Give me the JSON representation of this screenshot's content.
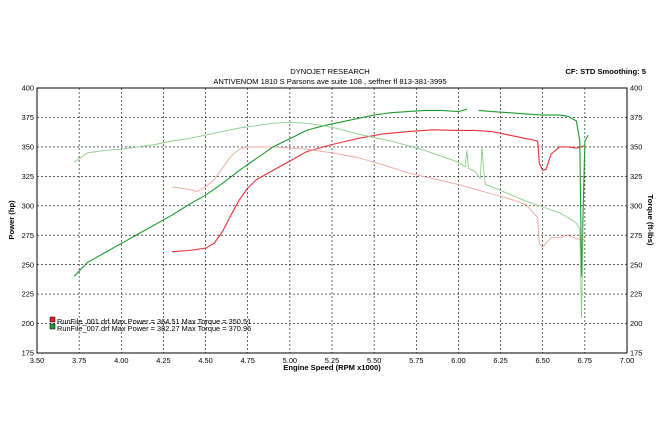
{
  "chart_data": {
    "type": "line",
    "title": "DYNOJET RESEARCH",
    "subtitle": "ANTIVENOM 1810 S Parsons ave suite 108 , seffner fl 813-381-3995",
    "corner_label": "CF: STD  Smoothing: 5",
    "xlabel": "Engine Speed (RPM x1000)",
    "ylabel_left": "Power (hp)",
    "ylabel_right": "Torque (ft-lbs)",
    "xlim": [
      3.5,
      7.0
    ],
    "ylim": [
      175,
      400
    ],
    "x_ticks": [
      "3.50",
      "3.75",
      "4.00",
      "4.25",
      "4.50",
      "4.75",
      "5.00",
      "5.25",
      "5.50",
      "5.75",
      "6.00",
      "6.25",
      "6.50",
      "6.75",
      "7.00"
    ],
    "y_ticks": [
      "175",
      "200",
      "225",
      "250",
      "275",
      "300",
      "325",
      "350",
      "375",
      "400"
    ],
    "grid": true,
    "legend": [
      {
        "marker_color": "#e0202a",
        "text": "RunFile_001.drf Max Power = 364.51    Max Torque = 350.51"
      },
      {
        "marker_color": "#1f9a2e",
        "text": "RunFile_007.drf Max Power = 382.27    Max Torque = 370.96"
      }
    ],
    "series": [
      {
        "run": "RunFile_001.drf",
        "measure": "power",
        "color": "#e8323a",
        "x": [
          4.3,
          4.4,
          4.5,
          4.55,
          4.6,
          4.65,
          4.7,
          4.75,
          4.8,
          4.9,
          5.0,
          5.1,
          5.25,
          5.4,
          5.55,
          5.7,
          5.85,
          6.0,
          6.1,
          6.2,
          6.3,
          6.4,
          6.47,
          6.48,
          6.5,
          6.52,
          6.55,
          6.6,
          6.65,
          6.7,
          6.75
        ],
        "y": [
          261,
          262,
          264,
          268,
          278,
          292,
          305,
          315,
          322,
          330,
          338,
          346,
          352,
          357,
          361,
          363,
          364.5,
          364,
          364,
          363,
          360,
          357,
          355,
          336,
          330,
          331,
          344,
          350,
          350,
          349,
          351
        ]
      },
      {
        "run": "RunFile_001.drf",
        "measure": "torque",
        "color": "#f2a39a",
        "x": [
          4.3,
          4.4,
          4.45,
          4.5,
          4.55,
          4.6,
          4.65,
          4.7,
          4.75,
          4.8,
          4.9,
          5.0,
          5.1,
          5.25,
          5.4,
          5.55,
          5.7,
          5.85,
          6.0,
          6.1,
          6.2,
          6.3,
          6.4,
          6.47,
          6.48,
          6.5,
          6.55,
          6.6,
          6.65,
          6.7,
          6.75
        ],
        "y": [
          316,
          314,
          312,
          316,
          322,
          332,
          342,
          348,
          350,
          350,
          350,
          349,
          348,
          345,
          341,
          335,
          328,
          323,
          318,
          314,
          310,
          306,
          301,
          290,
          268,
          265,
          273,
          273,
          275,
          272,
          271
        ]
      },
      {
        "run": "RunFile_007.drf",
        "measure": "power",
        "color": "#1f9a2e",
        "x": [
          3.72,
          3.8,
          3.9,
          4.0,
          4.1,
          4.2,
          4.3,
          4.4,
          4.5,
          4.6,
          4.7,
          4.8,
          4.9,
          5.0,
          5.1,
          5.2,
          5.3,
          5.4,
          5.5,
          5.6,
          5.7,
          5.8,
          5.9,
          6.0,
          6.05,
          6.07,
          6.12,
          6.2,
          6.3,
          6.4,
          6.5,
          6.6,
          6.65,
          6.7,
          6.72,
          6.73,
          6.75,
          6.77
        ],
        "y": [
          240,
          252,
          260,
          268,
          276,
          284,
          292,
          301,
          309,
          319,
          330,
          340,
          350,
          357,
          364,
          368,
          371,
          374,
          377,
          379,
          380,
          381,
          381,
          380,
          382,
          null,
          381,
          380,
          379,
          378,
          377,
          377,
          376,
          372,
          355,
          240,
          355,
          360
        ]
      },
      {
        "run": "RunFile_007.drf",
        "measure": "torque",
        "color": "#8fcc8a",
        "x": [
          3.72,
          3.8,
          3.9,
          4.0,
          4.1,
          4.2,
          4.3,
          4.4,
          4.5,
          4.6,
          4.7,
          4.8,
          4.9,
          5.0,
          5.1,
          5.2,
          5.3,
          5.4,
          5.5,
          5.6,
          5.7,
          5.8,
          5.9,
          6.0,
          6.04,
          6.05,
          6.06,
          6.1,
          6.13,
          6.14,
          6.15,
          6.16,
          6.2,
          6.3,
          6.4,
          6.5,
          6.6,
          6.65,
          6.7,
          6.72,
          6.73,
          6.74,
          6.76
        ],
        "y": [
          337,
          345,
          347,
          348,
          350,
          352,
          355,
          357,
          360,
          363,
          366,
          368,
          370,
          371,
          370,
          368,
          365,
          361,
          358,
          355,
          351,
          347,
          342,
          337,
          333,
          347,
          332,
          329,
          323,
          350,
          330,
          318,
          316,
          310,
          304,
          299,
          294,
          290,
          285,
          280,
          205,
          283,
          285
        ]
      }
    ]
  }
}
